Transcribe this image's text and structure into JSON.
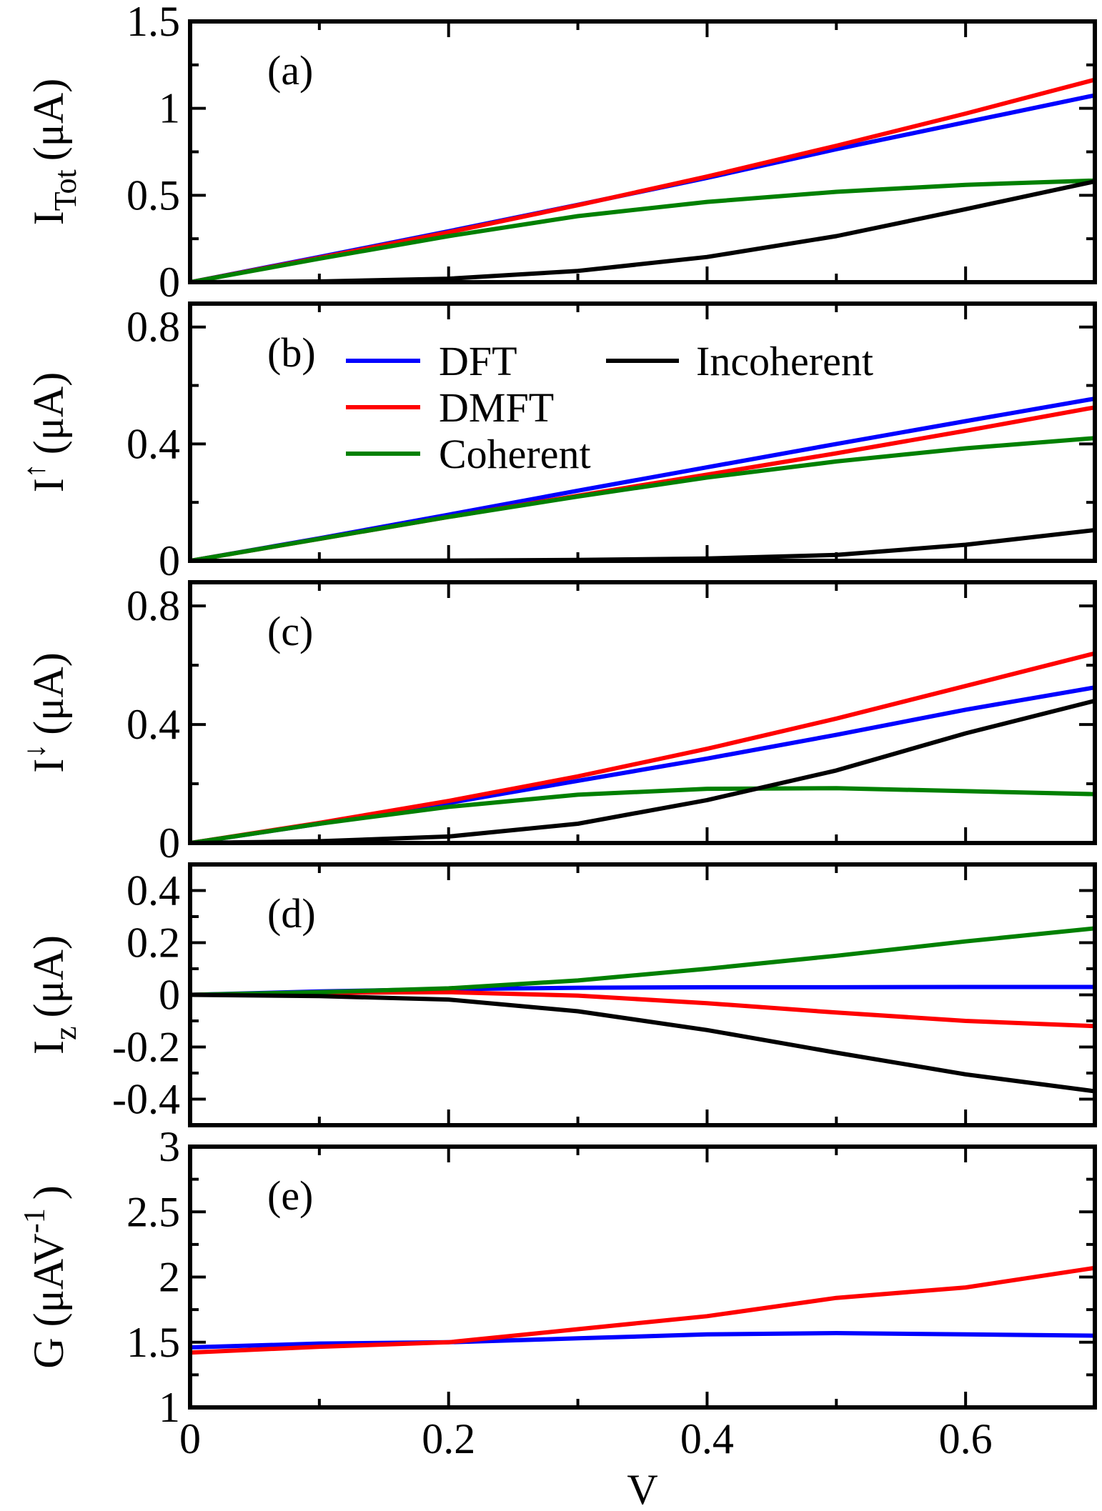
{
  "colors": {
    "DFT": "#0000ff",
    "DMFT": "#ff0000",
    "Coherent": "#008000",
    "Incoherent": "#000000"
  },
  "legend": {
    "panel_index": 1,
    "entries": [
      "DFT",
      "DMFT",
      "Coherent",
      "Incoherent"
    ]
  },
  "chart_data": [
    {
      "type": "line",
      "panel_label": "(a)",
      "ylabel": "I",
      "ylabel_sub": "Tot",
      "ylabel_sup": "",
      "ylabel_unit": "(μA)",
      "xlabel": "",
      "xlim": [
        0,
        0.7
      ],
      "ylim": [
        0,
        1.5
      ],
      "yticks": [
        0,
        0.5,
        1,
        1.5
      ],
      "ytick_labels": [
        "0",
        "0.5",
        "1",
        "1.5"
      ],
      "yminor": [
        0.25,
        0.75,
        1.25
      ],
      "xticks": [
        0,
        0.2,
        0.4,
        0.6
      ],
      "xtick_labels": [],
      "xminor": [
        0.1,
        0.3,
        0.5,
        0.7
      ],
      "x": [
        0,
        0.1,
        0.2,
        0.3,
        0.4,
        0.5,
        0.6,
        0.7
      ],
      "series": [
        {
          "name": "DFT",
          "values": [
            0,
            0.145,
            0.293,
            0.445,
            0.6,
            0.765,
            0.92,
            1.075
          ]
        },
        {
          "name": "DMFT",
          "values": [
            0,
            0.14,
            0.287,
            0.443,
            0.608,
            0.785,
            0.97,
            1.165
          ]
        },
        {
          "name": "Coherent",
          "values": [
            0,
            0.135,
            0.265,
            0.38,
            0.462,
            0.52,
            0.56,
            0.585
          ]
        },
        {
          "name": "Incoherent",
          "values": [
            0,
            0.004,
            0.02,
            0.065,
            0.145,
            0.265,
            0.42,
            0.58
          ]
        }
      ]
    },
    {
      "type": "line",
      "panel_label": "(b)",
      "ylabel": "I",
      "ylabel_sub": "",
      "ylabel_sup": "↑",
      "ylabel_unit": "(μA)",
      "xlabel": "",
      "xlim": [
        0,
        0.7
      ],
      "ylim": [
        0,
        0.88
      ],
      "yticks": [
        0,
        0.4,
        0.8
      ],
      "ytick_labels": [
        "0",
        "0.4",
        "0.8"
      ],
      "yminor": [
        0.2,
        0.6
      ],
      "xticks": [
        0,
        0.2,
        0.4,
        0.6
      ],
      "xtick_labels": [],
      "xminor": [
        0.1,
        0.3,
        0.5,
        0.7
      ],
      "x": [
        0,
        0.1,
        0.2,
        0.3,
        0.4,
        0.5,
        0.6,
        0.7
      ],
      "series": [
        {
          "name": "DFT",
          "values": [
            0,
            0.077,
            0.158,
            0.24,
            0.32,
            0.4,
            0.478,
            0.555
          ]
        },
        {
          "name": "DMFT",
          "values": [
            0,
            0.075,
            0.15,
            0.223,
            0.295,
            0.368,
            0.445,
            0.525
          ]
        },
        {
          "name": "Coherent",
          "values": [
            0,
            0.075,
            0.15,
            0.22,
            0.285,
            0.34,
            0.385,
            0.42
          ]
        },
        {
          "name": "Incoherent",
          "values": [
            0,
            0,
            0.001,
            0.003,
            0.008,
            0.02,
            0.055,
            0.105
          ]
        }
      ]
    },
    {
      "type": "line",
      "panel_label": "(c)",
      "ylabel": "I",
      "ylabel_sub": "",
      "ylabel_sup": "↓",
      "ylabel_unit": "(μA)",
      "xlabel": "",
      "xlim": [
        0,
        0.7
      ],
      "ylim": [
        0,
        0.88
      ],
      "yticks": [
        0,
        0.4,
        0.8
      ],
      "ytick_labels": [
        "0",
        "0.4",
        "0.8"
      ],
      "yminor": [
        0.2,
        0.6
      ],
      "xticks": [
        0,
        0.2,
        0.4,
        0.6
      ],
      "xtick_labels": [],
      "xminor": [
        0.1,
        0.3,
        0.5,
        0.7
      ],
      "x": [
        0,
        0.1,
        0.2,
        0.3,
        0.4,
        0.5,
        0.6,
        0.7
      ],
      "series": [
        {
          "name": "DFT",
          "values": [
            0,
            0.065,
            0.135,
            0.21,
            0.285,
            0.365,
            0.45,
            0.525
          ]
        },
        {
          "name": "DMFT",
          "values": [
            0,
            0.068,
            0.142,
            0.225,
            0.318,
            0.42,
            0.53,
            0.64
          ]
        },
        {
          "name": "Coherent",
          "values": [
            0,
            0.065,
            0.122,
            0.163,
            0.183,
            0.185,
            0.175,
            0.165
          ]
        },
        {
          "name": "Incoherent",
          "values": [
            0,
            0.006,
            0.022,
            0.065,
            0.145,
            0.245,
            0.37,
            0.48
          ]
        }
      ]
    },
    {
      "type": "line",
      "panel_label": "(d)",
      "ylabel": "I",
      "ylabel_sub": "z",
      "ylabel_sup": "",
      "ylabel_unit": "(μA)",
      "xlabel": "",
      "xlim": [
        0,
        0.7
      ],
      "ylim": [
        -0.5,
        0.5
      ],
      "yticks": [
        -0.4,
        -0.2,
        0,
        0.2,
        0.4
      ],
      "ytick_labels": [
        "-0.4",
        "-0.2",
        "0",
        "0.2",
        "0.4"
      ],
      "yminor": [
        -0.3,
        -0.1,
        0.1,
        0.3
      ],
      "xticks": [
        0,
        0.2,
        0.4,
        0.6
      ],
      "xtick_labels": [],
      "xminor": [
        0.1,
        0.3,
        0.5,
        0.7
      ],
      "x": [
        0,
        0.1,
        0.2,
        0.3,
        0.4,
        0.5,
        0.6,
        0.7
      ],
      "series": [
        {
          "name": "DFT",
          "values": [
            0,
            0.013,
            0.022,
            0.027,
            0.029,
            0.029,
            0.03,
            0.03
          ]
        },
        {
          "name": "DMFT",
          "values": [
            0,
            0.008,
            0.01,
            -0.003,
            -0.032,
            -0.068,
            -0.1,
            -0.12
          ]
        },
        {
          "name": "Coherent",
          "values": [
            0,
            0.01,
            0.025,
            0.055,
            0.1,
            0.15,
            0.205,
            0.255
          ]
        },
        {
          "name": "Incoherent",
          "values": [
            0,
            -0.005,
            -0.018,
            -0.063,
            -0.135,
            -0.222,
            -0.305,
            -0.37
          ]
        }
      ]
    },
    {
      "type": "line",
      "panel_label": "(e)",
      "ylabel": "G (μAV",
      "ylabel_sub": "",
      "ylabel_sup": "-1",
      "ylabel_unit": ")",
      "xlabel": "V",
      "xlim": [
        0,
        0.7
      ],
      "ylim": [
        1,
        3
      ],
      "yticks": [
        1,
        1.5,
        2,
        2.5,
        3
      ],
      "ytick_labels": [
        "1",
        "1.5",
        "2",
        "2.5",
        "3"
      ],
      "yminor": [
        1.25,
        1.75,
        2.25,
        2.75
      ],
      "xticks": [
        0,
        0.2,
        0.4,
        0.6
      ],
      "xtick_labels": [
        "0",
        "0.2",
        "0.4",
        "0.6"
      ],
      "xminor": [
        0.1,
        0.3,
        0.5,
        0.7
      ],
      "x": [
        0,
        0.1,
        0.2,
        0.3,
        0.4,
        0.5,
        0.6,
        0.7
      ],
      "series": [
        {
          "name": "DFT",
          "values": [
            1.46,
            1.49,
            1.5,
            1.53,
            1.56,
            1.57,
            1.56,
            1.55
          ]
        },
        {
          "name": "DMFT",
          "values": [
            1.42,
            1.465,
            1.5,
            1.6,
            1.7,
            1.84,
            1.92,
            2.07
          ]
        }
      ]
    }
  ]
}
